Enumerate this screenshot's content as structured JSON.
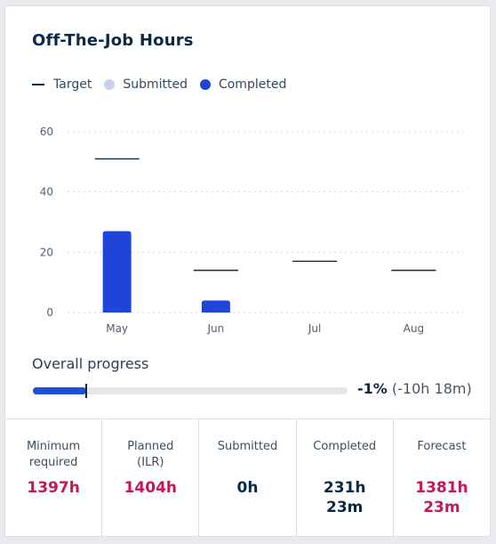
{
  "card": {
    "title": "Off-The-Job Hours"
  },
  "legend": {
    "items": [
      {
        "label": "Target",
        "kind": "line",
        "color": "#0b2a45"
      },
      {
        "label": "Submitted",
        "kind": "dot",
        "color": "#c9d1ef"
      },
      {
        "label": "Completed",
        "kind": "dot",
        "color": "#1f45d6"
      }
    ]
  },
  "chart_data": {
    "type": "bar",
    "categories": [
      "May",
      "Jun",
      "Jul",
      "Aug"
    ],
    "series": [
      {
        "name": "Completed",
        "values": [
          27,
          4,
          0,
          0
        ],
        "color": "#1f45d6"
      },
      {
        "name": "Target",
        "values": [
          51,
          14,
          17,
          14
        ],
        "color": "#0b2a45"
      }
    ],
    "yticks": [
      0,
      20,
      40,
      60
    ],
    "ylim": [
      0,
      60
    ],
    "grid": true,
    "legend": "top-left"
  },
  "progress": {
    "label": "Overall progress",
    "percent_text": "-1%",
    "delta_text": "(-10h 18m)",
    "fill_fraction": 0.17,
    "fill_color": "#1f4fd8"
  },
  "stats": [
    {
      "label": "Minimum\nrequired",
      "value": "1397h",
      "color": "#c2185b"
    },
    {
      "label": "Planned\n(ILR)",
      "value": "1404h",
      "color": "#c2185b"
    },
    {
      "label": "Submitted",
      "value": "0h",
      "color": "#0b2a45"
    },
    {
      "label": "Completed",
      "value": "231h\n23m",
      "color": "#0b2a45"
    },
    {
      "label": "Forecast",
      "value": "1381h\n23m",
      "color": "#c2185b"
    }
  ]
}
